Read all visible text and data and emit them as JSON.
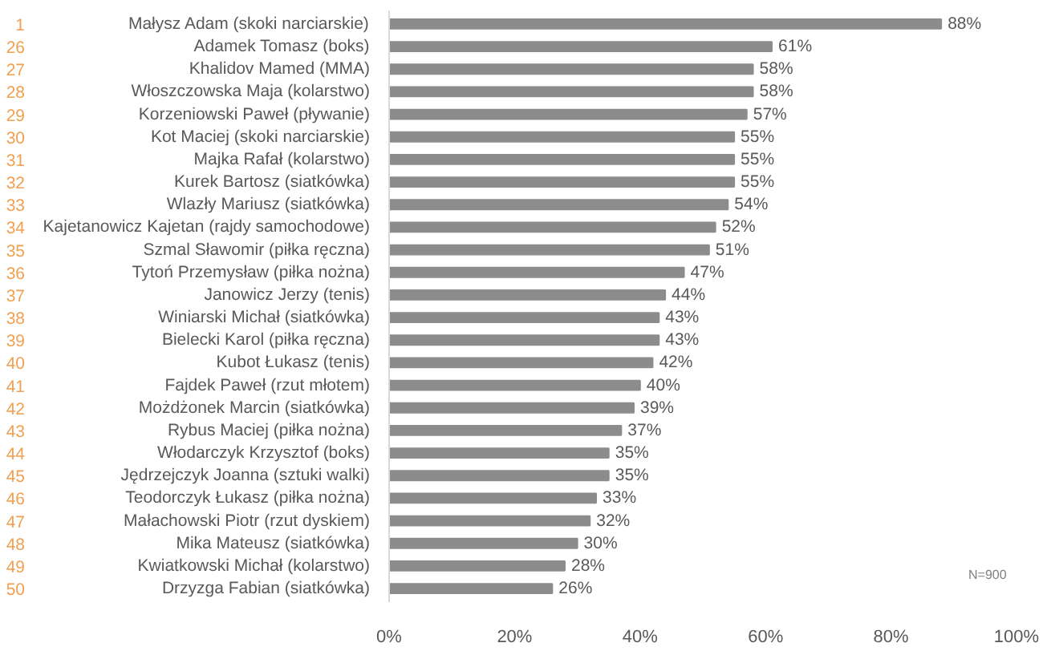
{
  "chart_data": {
    "type": "bar",
    "orientation": "horizontal",
    "categories": [
      "Małysz Adam (skoki narciarskie)",
      "Adamek Tomasz (boks)",
      "Khalidov Mamed (MMA)",
      "Włoszczowska Maja (kolarstwo)",
      "Korzeniowski Paweł (pływanie)",
      "Kot Maciej (skoki narciarskie)",
      "Majka Rafał (kolarstwo)",
      "Kurek Bartosz (siatkówka)",
      "Wlazły Mariusz (siatkówka)",
      "Kajetanowicz Kajetan (rajdy samochodowe)",
      "Szmal Sławomir (piłka ręczna)",
      "Tytoń Przemysław (piłka nożna)",
      "Janowicz Jerzy (tenis)",
      "Winiarski Michał (siatkówka)",
      "Bielecki Karol (piłka ręczna)",
      "Kubot Łukasz (tenis)",
      "Fajdek Paweł (rzut młotem)",
      "Możdżonek Marcin (siatkówka)",
      "Rybus Maciej (piłka nożna)",
      "Włodarczyk Krzysztof (boks)",
      "Jędrzejczyk Joanna (sztuki walki)",
      "Teodorczyk Łukasz (piłka nożna)",
      "Małachowski Piotr (rzut dyskiem)",
      "Mika Mateusz (siatkówka)",
      "Kwiatkowski Michał (kolarstwo)",
      "Drzyzga Fabian (siatkówka)"
    ],
    "values": [
      88,
      61,
      58,
      58,
      57,
      55,
      55,
      55,
      54,
      52,
      51,
      47,
      44,
      43,
      43,
      42,
      40,
      39,
      37,
      35,
      35,
      33,
      32,
      30,
      28,
      26
    ],
    "value_labels": [
      "88%",
      "61%",
      "58%",
      "58%",
      "57%",
      "55%",
      "55%",
      "55%",
      "54%",
      "52%",
      "51%",
      "47%",
      "44%",
      "43%",
      "43%",
      "42%",
      "40%",
      "39%",
      "37%",
      "35%",
      "35%",
      "33%",
      "32%",
      "30%",
      "28%",
      "26%"
    ],
    "color": "#8c8c8c",
    "xlim": [
      0,
      100
    ],
    "xticks": [
      {
        "value": 0,
        "label": "0%"
      },
      {
        "value": 20,
        "label": "20%"
      },
      {
        "value": 40,
        "label": "40%"
      },
      {
        "value": 60,
        "label": "60%"
      },
      {
        "value": 80,
        "label": "80%"
      },
      {
        "value": 100,
        "label": "100%"
      }
    ],
    "grid": false,
    "annotations": [
      "1",
      "26",
      "27",
      "28",
      "29",
      "30",
      "31",
      "32",
      "33",
      "34",
      "35",
      "36",
      "37",
      "38",
      "39",
      "40",
      "41",
      "42",
      "43",
      "44",
      "45",
      "46",
      "47",
      "48",
      "49",
      "50",
      "N=900"
    ]
  }
}
